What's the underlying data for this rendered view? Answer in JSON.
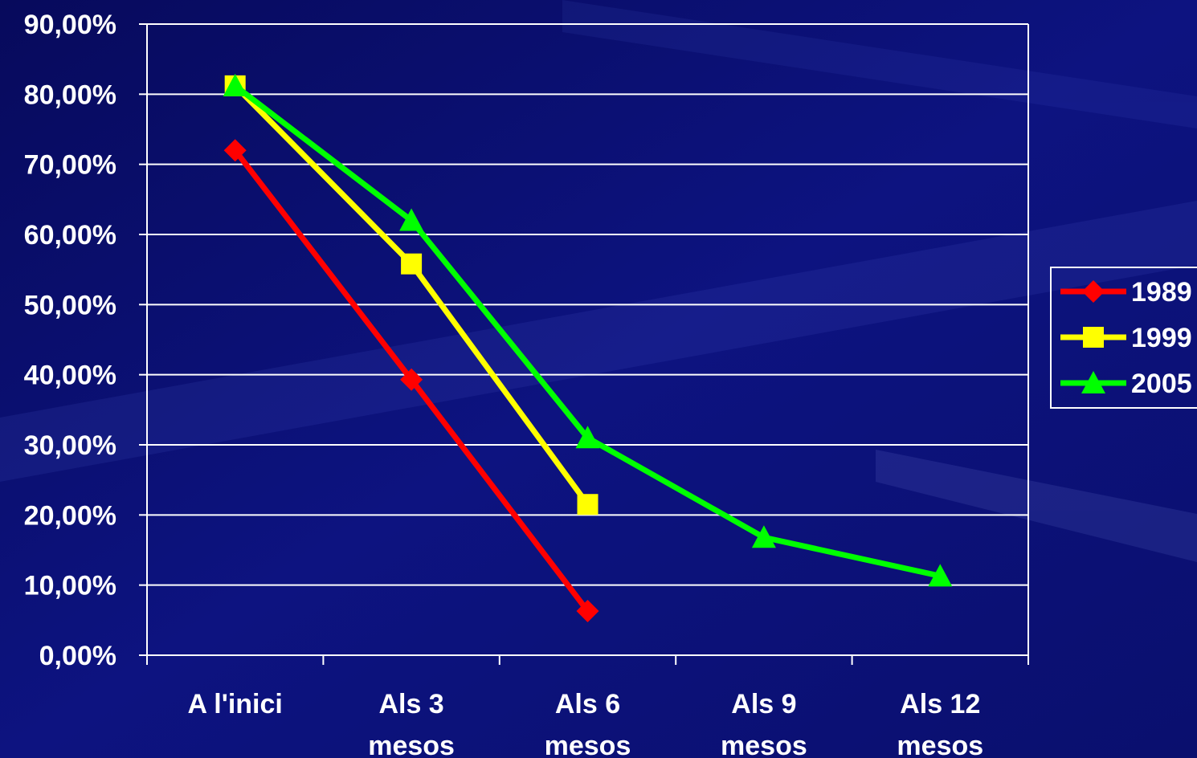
{
  "colors": {
    "background": "#0b0f73",
    "grid": "#ffffff",
    "text": "#ffffff"
  },
  "chart_data": {
    "type": "line",
    "categories": [
      [
        "A l'inici"
      ],
      [
        "Als 3",
        "mesos"
      ],
      [
        "Als 6",
        "mesos"
      ],
      [
        "Als 9",
        "mesos"
      ],
      [
        "Als 12",
        "mesos"
      ]
    ],
    "ylim": [
      0,
      90
    ],
    "yticks": [
      0,
      10,
      20,
      30,
      40,
      50,
      60,
      70,
      80,
      90
    ],
    "ytick_labels": [
      "0,00%",
      "10,00%",
      "20,00%",
      "30,00%",
      "40,00%",
      "50,00%",
      "60,00%",
      "70,00%",
      "80,00%",
      "90,00%"
    ],
    "grid": true,
    "legend": "right",
    "series": [
      {
        "name": "1989",
        "color": "#ff0000",
        "marker": "diamond",
        "values": [
          72,
          39.3,
          6.3,
          null,
          null
        ]
      },
      {
        "name": "1999",
        "color": "#ffff00",
        "marker": "square",
        "values": [
          81.2,
          55.8,
          21.5,
          null,
          null
        ]
      },
      {
        "name": "2005",
        "color": "#00ff00",
        "marker": "triangle",
        "values": [
          81.2,
          62,
          31,
          16.8,
          11.3
        ]
      }
    ]
  }
}
